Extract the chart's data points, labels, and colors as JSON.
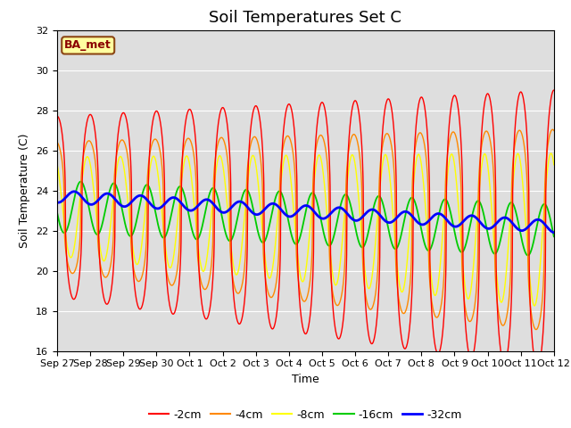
{
  "title": "Soil Temperatures Set C",
  "xlabel": "Time",
  "ylabel": "Soil Temperature (C)",
  "ylim": [
    16,
    32
  ],
  "yticks": [
    16,
    18,
    20,
    22,
    24,
    26,
    28,
    30,
    32
  ],
  "legend_labels": [
    "-2cm",
    "-4cm",
    "-8cm",
    "-16cm",
    "-32cm"
  ],
  "legend_colors": [
    "#ff0000",
    "#ff8800",
    "#ffff00",
    "#00cc00",
    "#0000ff"
  ],
  "annotation_text": "BA_met",
  "background_color": "#e0e0e0",
  "x_tick_labels": [
    "Sep 27",
    "Sep 28",
    "Sep 29",
    "Sep 30",
    "Oct 1",
    "Oct 2",
    "Oct 3",
    "Oct 4",
    "Oct 5",
    "Oct 6",
    "Oct 7",
    "Oct 8",
    "Oct 9",
    "Oct 10",
    "Oct 11",
    "Oct 12"
  ],
  "title_fontsize": 13,
  "axis_fontsize": 9,
  "tick_fontsize": 8
}
